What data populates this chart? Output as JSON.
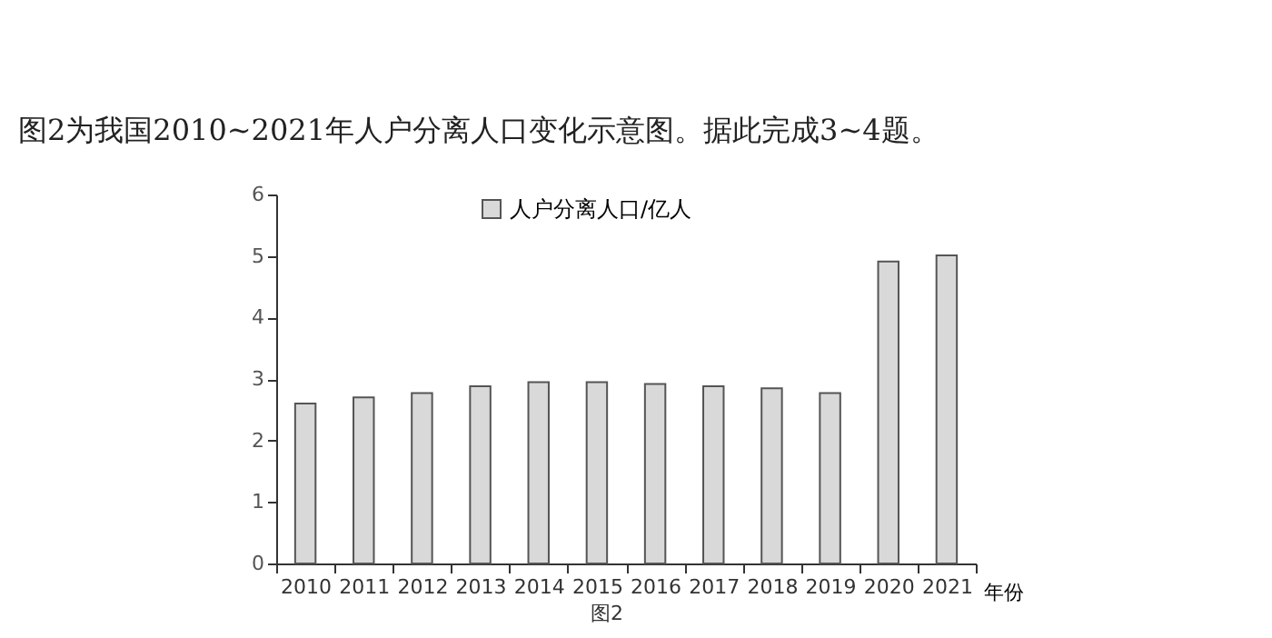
{
  "chart_data": {
    "type": "bar",
    "annotations": [
      "图2为我国2010~2021年人户分离人口变化示意图。据此完成3~4题。",
      "图2"
    ],
    "xlabel": "年份",
    "categories": [
      "2010",
      "2011",
      "2012",
      "2013",
      "2014",
      "2015",
      "2016",
      "2017",
      "2018",
      "2019",
      "2020",
      "2021"
    ],
    "series": [
      {
        "name": "人户分离人口/亿人",
        "color": "#d9d9d9",
        "values": [
          2.6,
          2.7,
          2.77,
          2.88,
          2.95,
          2.95,
          2.92,
          2.88,
          2.85,
          2.77,
          4.91,
          5.01
        ]
      }
    ],
    "ylim": [
      0,
      6
    ],
    "yticks": [
      0,
      1,
      2,
      3,
      4,
      5,
      6
    ],
    "grid": false,
    "legend": "top"
  }
}
